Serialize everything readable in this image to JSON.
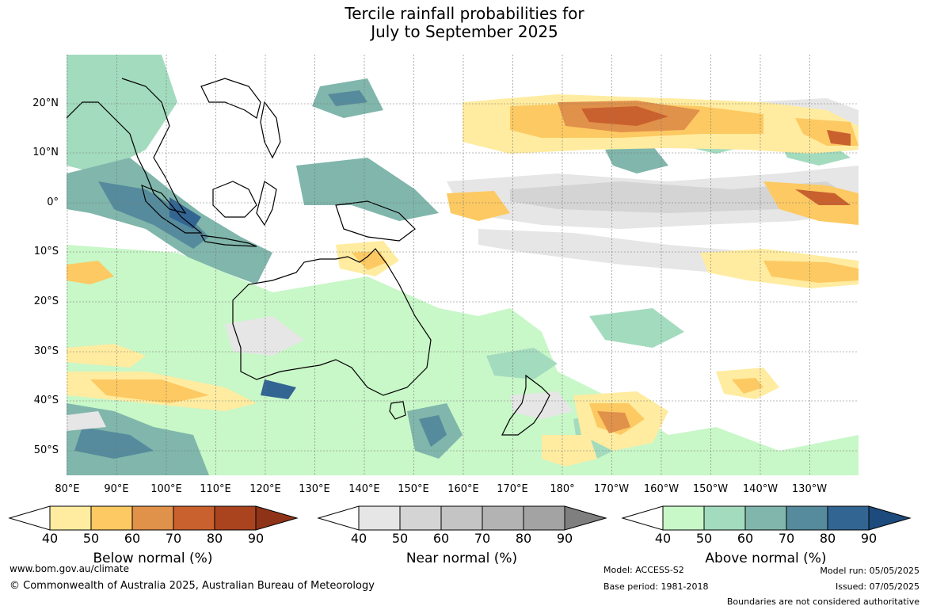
{
  "title": {
    "line1": "Tercile rainfall probabilities for",
    "line2": "July to September 2025"
  },
  "latitude_labels": [
    "20°N",
    "10°N",
    "0°",
    "10°S",
    "20°S",
    "30°S",
    "40°S",
    "50°S"
  ],
  "longitude_labels": [
    "80°E",
    "90°E",
    "100°E",
    "110°E",
    "120°E",
    "130°E",
    "140°E",
    "150°E",
    "160°E",
    "170°E",
    "180°",
    "170°W",
    "160°W",
    "150°W",
    "140°W",
    "130°W"
  ],
  "colorbars": [
    {
      "title": "Below normal (%)",
      "ticks": [
        "40",
        "50",
        "60",
        "70",
        "80",
        "90"
      ],
      "colors": [
        "#ffffff",
        "#ffeca0",
        "#fdc962",
        "#e0914a",
        "#c9612e",
        "#a9441f",
        "#8f3318"
      ]
    },
    {
      "title": "Near normal (%)",
      "ticks": [
        "40",
        "50",
        "60",
        "70",
        "80",
        "90"
      ],
      "colors": [
        "#ffffff",
        "#e6e6e6",
        "#d4d4d4",
        "#c4c4c4",
        "#b3b3b3",
        "#a3a3a3",
        "#7f7f7f"
      ]
    },
    {
      "title": "Above normal (%)",
      "ticks": [
        "40",
        "50",
        "60",
        "70",
        "80",
        "90"
      ],
      "colors": [
        "#ffffff",
        "#c8f7c8",
        "#a3dbbe",
        "#80b6ab",
        "#558b9c",
        "#336593",
        "#1e4b7d"
      ]
    }
  ],
  "footer": {
    "website": "www.bom.gov.au/climate",
    "copyright": "© Commonwealth of Australia 2025, Australian Bureau of Meteorology",
    "model": "Model: ACCESS-S2",
    "base_period": "Base period: 1981-2018",
    "model_run": "Model run: 05/05/2025",
    "issued": "Issued: 07/05/2025",
    "disclaimer": "Boundaries are not considered authoritative"
  }
}
